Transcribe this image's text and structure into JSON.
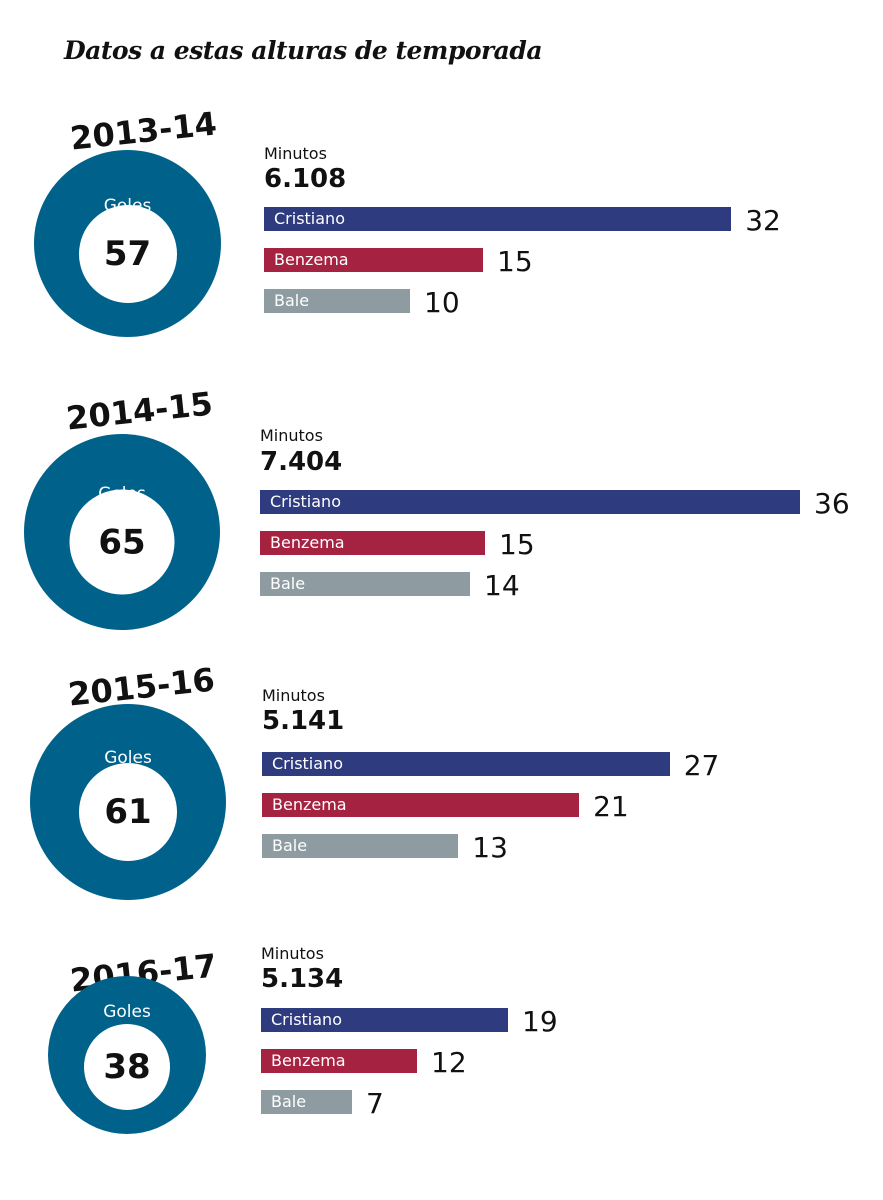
{
  "title": "Datos a estas alturas de temporada",
  "colors": {
    "donut": "#00628b",
    "Cristiano": "#2e3b7e",
    "Benzema": "#a52341",
    "Bale": "#8e9ba1"
  },
  "chart_data": [
    {
      "type": "bar",
      "season": "2013-14",
      "goles_label": "Goles",
      "goles": 57,
      "minutes_label": "Minutos",
      "minutes": "6.108",
      "categories": [
        "Cristiano",
        "Benzema",
        "Bale"
      ],
      "values": [
        32,
        15,
        10
      ],
      "value_labels": [
        "32",
        "15",
        "10"
      ],
      "xlim": [
        0,
        36
      ]
    },
    {
      "type": "bar",
      "season": "2014-15",
      "goles_label": "Goles",
      "goles": 65,
      "minutes_label": "Minutos",
      "minutes": "7.404",
      "categories": [
        "Cristiano",
        "Benzema",
        "Bale"
      ],
      "values": [
        36,
        15,
        14
      ],
      "value_labels": [
        "36",
        "15",
        "14"
      ],
      "xlim": [
        0,
        36
      ]
    },
    {
      "type": "bar",
      "season": "2015-16",
      "goles_label": "Goles",
      "goles": 61,
      "minutes_label": "Minutos",
      "minutes": "5.141",
      "categories": [
        "Cristiano",
        "Benzema",
        "Bale"
      ],
      "values": [
        27,
        21,
        13
      ],
      "value_labels": [
        "27",
        "21",
        "13"
      ],
      "xlim": [
        0,
        36
      ]
    },
    {
      "type": "bar",
      "season": "2016-17",
      "goles_label": "Goles",
      "goles": 38,
      "minutes_label": "Minutos",
      "minutes": "5.134",
      "categories": [
        "Cristiano",
        "Benzema",
        "Bale"
      ],
      "values": [
        19,
        12,
        7
      ],
      "value_labels": [
        "19",
        "12",
        "7"
      ],
      "xlim": [
        0,
        36
      ]
    }
  ]
}
